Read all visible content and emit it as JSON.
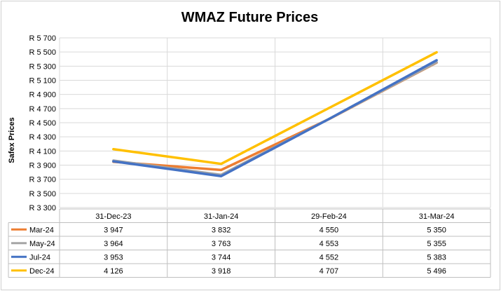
{
  "chart_data": {
    "type": "line",
    "title": "WMAZ Future Prices",
    "ylabel": "Safex Prices",
    "xlabel": "",
    "categories": [
      "31-Dec-23",
      "31-Jan-24",
      "29-Feb-24",
      "31-Mar-24"
    ],
    "ylim": [
      3300,
      5700
    ],
    "y_ticks": [
      3300,
      3500,
      3700,
      3900,
      4100,
      4300,
      4500,
      4700,
      4900,
      5100,
      5300,
      5500,
      5700
    ],
    "y_tick_labels": [
      "R 3 300",
      "R 3 500",
      "R 3 700",
      "R 3 900",
      "R 4 100",
      "R 4 300",
      "R 4 500",
      "R 4 700",
      "R 4 900",
      "R 5 100",
      "R 5 300",
      "R 5 500",
      "R 5 700"
    ],
    "grid": true,
    "legend": "data-table",
    "series": [
      {
        "name": "Mar-24",
        "color": "#ED7D31",
        "values": [
          3947,
          3832,
          4550,
          5350
        ],
        "labels": [
          "3 947",
          "3 832",
          "4 550",
          "5 350"
        ]
      },
      {
        "name": "May-24",
        "color": "#A5A5A5",
        "values": [
          3964,
          3763,
          4553,
          5355
        ],
        "labels": [
          "3 964",
          "3 763",
          "4 553",
          "5 355"
        ]
      },
      {
        "name": "Jul-24",
        "color": "#4472C4",
        "values": [
          3953,
          3744,
          4552,
          5383
        ],
        "labels": [
          "3 953",
          "3 744",
          "4 552",
          "5 383"
        ]
      },
      {
        "name": "Dec-24",
        "color": "#FFC000",
        "values": [
          4126,
          3918,
          4707,
          5496
        ],
        "labels": [
          "4 126",
          "3 918",
          "4 707",
          "5 496"
        ]
      }
    ]
  }
}
